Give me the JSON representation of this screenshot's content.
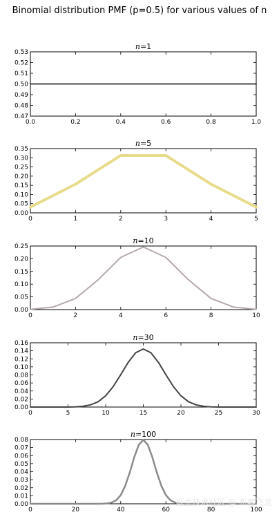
{
  "figure": {
    "title": "Binomial distribution PMF (p=0.5) for various values of n",
    "watermark": "掘金技术社区 @ 布客飞龙"
  },
  "chart_data": [
    {
      "type": "line",
      "title": "n=1",
      "title_var": "n",
      "title_rest": "=1",
      "color": "#000000",
      "x": [
        0,
        1
      ],
      "y": [
        0.5,
        0.5
      ],
      "xlim": [
        0,
        1.0
      ],
      "ylim": [
        0.47,
        0.53
      ],
      "xticks": [
        0,
        0.2,
        0.4,
        0.6,
        0.8,
        1.0
      ],
      "xtick_labels": [
        "0.0",
        "0.2",
        "0.4",
        "0.6",
        "0.8",
        "1.0"
      ],
      "yticks": [
        0.47,
        0.48,
        0.49,
        0.5,
        0.51,
        0.52,
        0.53
      ],
      "ytick_labels": [
        "0.47",
        "0.48",
        "0.49",
        "0.50",
        "0.51",
        "0.52",
        "0.53"
      ]
    },
    {
      "type": "line",
      "title": "n=5",
      "title_var": "n",
      "title_rest": "=5",
      "color": "#e8dc8c",
      "x": [
        0,
        1,
        2,
        3,
        4,
        5
      ],
      "y": [
        0.03125,
        0.15625,
        0.3125,
        0.3125,
        0.15625,
        0.03125
      ],
      "xlim": [
        0,
        5
      ],
      "ylim": [
        0,
        0.35
      ],
      "xticks": [
        0,
        1,
        2,
        3,
        4,
        5
      ],
      "xtick_labels": [
        "0",
        "1",
        "2",
        "3",
        "4",
        "5"
      ],
      "yticks": [
        0,
        0.05,
        0.1,
        0.15,
        0.2,
        0.25,
        0.3,
        0.35
      ],
      "ytick_labels": [
        "0.00",
        "0.05",
        "0.10",
        "0.15",
        "0.20",
        "0.25",
        "0.30",
        "0.35"
      ]
    },
    {
      "type": "line",
      "title": "n=10",
      "title_var": "n",
      "title_rest": "=10",
      "color": "#b5a8a8",
      "x": [
        0,
        1,
        2,
        3,
        4,
        5,
        6,
        7,
        8,
        9,
        10
      ],
      "y": [
        0.001,
        0.0098,
        0.0439,
        0.1172,
        0.2051,
        0.2461,
        0.2051,
        0.1172,
        0.0439,
        0.0098,
        0.001
      ],
      "xlim": [
        0,
        10
      ],
      "ylim": [
        0,
        0.25
      ],
      "xticks": [
        0,
        2,
        4,
        6,
        8,
        10
      ],
      "xtick_labels": [
        "0",
        "2",
        "4",
        "6",
        "8",
        "10"
      ],
      "yticks": [
        0,
        0.05,
        0.1,
        0.15,
        0.2,
        0.25
      ],
      "ytick_labels": [
        "0.00",
        "0.05",
        "0.10",
        "0.15",
        "0.20",
        "0.25"
      ]
    },
    {
      "type": "line",
      "title": "n=30",
      "title_var": "n",
      "title_rest": "=30",
      "color": "#444444",
      "x": [
        0,
        1,
        2,
        3,
        4,
        5,
        6,
        7,
        8,
        9,
        10,
        11,
        12,
        13,
        14,
        15,
        16,
        17,
        18,
        19,
        20,
        21,
        22,
        23,
        24,
        25,
        26,
        27,
        28,
        29,
        30
      ],
      "y": [
        0,
        0,
        0,
        0,
        0,
        0,
        0.0006,
        0.0019,
        0.0055,
        0.0133,
        0.028,
        0.0509,
        0.0806,
        0.1115,
        0.1354,
        0.1445,
        0.1354,
        0.1115,
        0.0806,
        0.0509,
        0.028,
        0.0133,
        0.0055,
        0.0019,
        0.0006,
        0,
        0,
        0,
        0,
        0,
        0
      ],
      "xlim": [
        0,
        30
      ],
      "ylim": [
        0,
        0.16
      ],
      "xticks": [
        0,
        5,
        10,
        15,
        20,
        25,
        30
      ],
      "xtick_labels": [
        "0",
        "5",
        "10",
        "15",
        "20",
        "25",
        "30"
      ],
      "yticks": [
        0,
        0.02,
        0.04,
        0.06,
        0.08,
        0.1,
        0.12,
        0.14,
        0.16
      ],
      "ytick_labels": [
        "0.00",
        "0.02",
        "0.04",
        "0.06",
        "0.08",
        "0.10",
        "0.12",
        "0.14",
        "0.16"
      ]
    },
    {
      "type": "line",
      "title": "n=100",
      "title_var": "n",
      "title_rest": "=100",
      "color": "#8a8a8a",
      "x": [
        0,
        30,
        32,
        34,
        36,
        38,
        40,
        42,
        44,
        46,
        48,
        50,
        52,
        54,
        56,
        58,
        60,
        62,
        64,
        66,
        68,
        70,
        100
      ],
      "y": [
        0,
        0,
        0.0001,
        0.0004,
        0.0016,
        0.0045,
        0.0108,
        0.0223,
        0.039,
        0.058,
        0.0735,
        0.0796,
        0.0735,
        0.058,
        0.039,
        0.0223,
        0.0108,
        0.0045,
        0.0016,
        0.0004,
        0.0001,
        0,
        0
      ],
      "xlim": [
        0,
        100
      ],
      "ylim": [
        0,
        0.08
      ],
      "xticks": [
        0,
        20,
        40,
        60,
        80,
        100
      ],
      "xtick_labels": [
        "0",
        "20",
        "40",
        "60",
        "80",
        "100"
      ],
      "yticks": [
        0,
        0.01,
        0.02,
        0.03,
        0.04,
        0.05,
        0.06,
        0.07,
        0.08
      ],
      "ytick_labels": [
        "0.00",
        "0.01",
        "0.02",
        "0.03",
        "0.04",
        "0.05",
        "0.06",
        "0.07",
        "0.08"
      ]
    }
  ]
}
